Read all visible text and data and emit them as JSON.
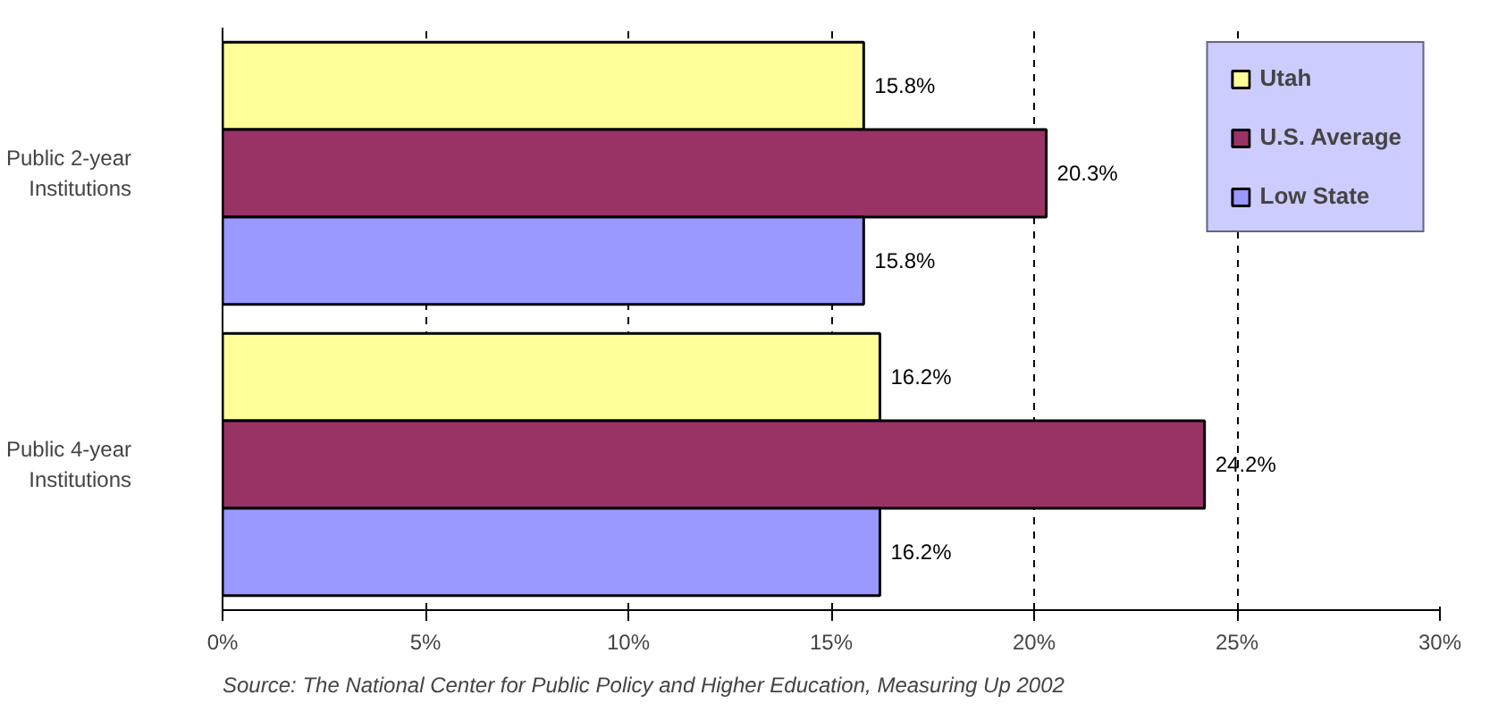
{
  "chart_data": {
    "type": "bar",
    "orientation": "horizontal",
    "categories": [
      "Public 2-year\nInstitutions",
      "Public 4-year\nInstitutions"
    ],
    "series": [
      {
        "name": "Utah",
        "color": "#ffff99",
        "values": [
          15.8,
          16.2
        ],
        "value_labels": [
          "15.8%",
          "16.2%"
        ]
      },
      {
        "name": "U.S. Average",
        "color": "#993366",
        "values": [
          20.3,
          24.2
        ],
        "value_labels": [
          "20.3%",
          "24.2%"
        ]
      },
      {
        "name": "Low State",
        "color": "#9999ff",
        "values": [
          15.8,
          16.2
        ],
        "value_labels": [
          "15.8%",
          "16.2%"
        ]
      }
    ],
    "xlim": [
      0,
      30
    ],
    "xticks": [
      {
        "value": 0,
        "label": "0%"
      },
      {
        "value": 5,
        "label": "5%"
      },
      {
        "value": 10,
        "label": "10%"
      },
      {
        "value": 15,
        "label": "15%"
      },
      {
        "value": 20,
        "label": "20%"
      },
      {
        "value": 25,
        "label": "25%"
      },
      {
        "value": 30,
        "label": "30%"
      }
    ],
    "grid": "x",
    "legend": "top right",
    "annotations": [
      "Source: The National Center for Public Policy and Higher Education, Measuring Up 2002"
    ]
  }
}
